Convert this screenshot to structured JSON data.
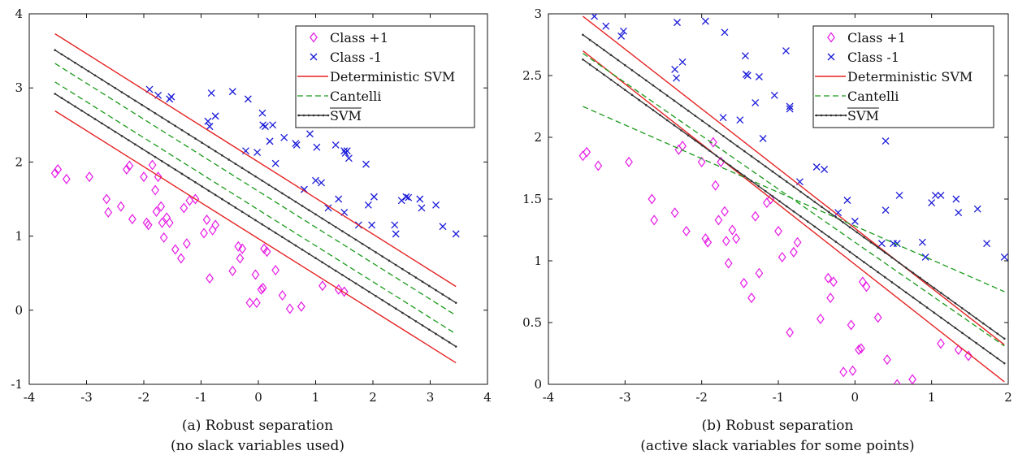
{
  "colors": {
    "class_pos": "#e619e6",
    "class_neg": "#1a1ad9",
    "det_svm": "#e52222",
    "cantelli": "#1a9a1a",
    "svm_bar": "#333333"
  },
  "legend": {
    "items": [
      {
        "label": "Class +1",
        "marker": "diamond",
        "color": "#e619e6"
      },
      {
        "label": "Class -1",
        "marker": "x",
        "color": "#1a1ad9"
      },
      {
        "label": "Deterministic SVM",
        "line": "solid",
        "color": "#e52222"
      },
      {
        "label": "Cantelli",
        "line": "dashed",
        "color": "#1a9a1a"
      },
      {
        "label": "SVM",
        "line": "solid-dot",
        "color": "#333333",
        "overline": true
      }
    ]
  },
  "chart_data": [
    {
      "type": "scatter",
      "caption_line1": "(a) Robust separation",
      "caption_line2": "(no slack variables used)",
      "xlim": [
        -4,
        4
      ],
      "ylim": [
        -1,
        4
      ],
      "xticks": [
        -4,
        -3,
        -2,
        -1,
        0,
        1,
        2,
        3,
        4
      ],
      "yticks": [
        -1,
        0,
        1,
        2,
        3,
        4
      ],
      "xtick_labels": [
        "-4",
        "-3",
        "-2",
        "-1",
        "0",
        "1",
        "2",
        "3",
        "4"
      ],
      "ytick_labels": [
        "-1",
        "0",
        "1",
        "2",
        "3",
        "4"
      ],
      "class_pos": [
        [
          -3.55,
          1.85
        ],
        [
          -3.5,
          1.9
        ],
        [
          -3.35,
          1.77
        ],
        [
          -2.95,
          1.8
        ],
        [
          -2.65,
          1.5
        ],
        [
          -2.62,
          1.32
        ],
        [
          -2.4,
          1.4
        ],
        [
          -2.3,
          1.9
        ],
        [
          -2.25,
          1.95
        ],
        [
          -2.2,
          1.23
        ],
        [
          -2.0,
          1.8
        ],
        [
          -1.95,
          1.18
        ],
        [
          -1.92,
          1.15
        ],
        [
          -1.85,
          1.96
        ],
        [
          -1.8,
          1.62
        ],
        [
          -1.78,
          1.33
        ],
        [
          -1.75,
          1.8
        ],
        [
          -1.7,
          1.4
        ],
        [
          -1.68,
          1.18
        ],
        [
          -1.65,
          0.98
        ],
        [
          -1.6,
          1.25
        ],
        [
          -1.55,
          1.18
        ],
        [
          -1.45,
          0.82
        ],
        [
          -1.35,
          0.7
        ],
        [
          -1.3,
          1.38
        ],
        [
          -1.25,
          0.9
        ],
        [
          -1.2,
          1.48
        ],
        [
          -1.1,
          1.5
        ],
        [
          -0.95,
          1.04
        ],
        [
          -0.9,
          1.22
        ],
        [
          -0.85,
          0.43
        ],
        [
          -0.8,
          1.08
        ],
        [
          -0.75,
          1.15
        ],
        [
          -0.45,
          0.53
        ],
        [
          -0.35,
          0.86
        ],
        [
          -0.32,
          0.7
        ],
        [
          -0.28,
          0.83
        ],
        [
          -0.15,
          0.1
        ],
        [
          -0.05,
          0.48
        ],
        [
          -0.03,
          0.1
        ],
        [
          0.05,
          0.28
        ],
        [
          0.08,
          0.3
        ],
        [
          0.1,
          0.83
        ],
        [
          0.15,
          0.79
        ],
        [
          0.3,
          0.54
        ],
        [
          0.42,
          0.2
        ],
        [
          0.55,
          0.02
        ],
        [
          0.75,
          0.05
        ],
        [
          1.12,
          0.33
        ],
        [
          1.4,
          0.28
        ],
        [
          1.5,
          0.25
        ]
      ],
      "class_neg": [
        [
          -1.9,
          2.98
        ],
        [
          -1.75,
          2.9
        ],
        [
          -1.55,
          2.85
        ],
        [
          -1.52,
          2.88
        ],
        [
          -0.88,
          2.55
        ],
        [
          -0.85,
          2.48
        ],
        [
          -0.82,
          2.93
        ],
        [
          -0.75,
          2.62
        ],
        [
          -0.45,
          2.95
        ],
        [
          -0.22,
          2.15
        ],
        [
          -0.18,
          2.85
        ],
        [
          -0.02,
          2.13
        ],
        [
          0.07,
          2.66
        ],
        [
          0.08,
          2.5
        ],
        [
          0.12,
          2.48
        ],
        [
          0.2,
          2.28
        ],
        [
          0.25,
          2.5
        ],
        [
          0.3,
          1.98
        ],
        [
          0.45,
          2.33
        ],
        [
          0.65,
          2.25
        ],
        [
          0.67,
          2.23
        ],
        [
          0.72,
          2.7
        ],
        [
          0.8,
          1.63
        ],
        [
          0.9,
          2.38
        ],
        [
          1.0,
          1.75
        ],
        [
          1.02,
          2.2
        ],
        [
          1.1,
          1.72
        ],
        [
          1.22,
          1.38
        ],
        [
          1.35,
          2.23
        ],
        [
          1.4,
          1.5
        ],
        [
          1.5,
          2.15
        ],
        [
          1.5,
          1.32
        ],
        [
          1.52,
          2.12
        ],
        [
          1.55,
          2.15
        ],
        [
          1.58,
          2.05
        ],
        [
          1.75,
          1.15
        ],
        [
          1.88,
          1.97
        ],
        [
          1.92,
          1.42
        ],
        [
          1.98,
          1.15
        ],
        [
          2.02,
          1.53
        ],
        [
          2.38,
          1.15
        ],
        [
          2.4,
          1.03
        ],
        [
          2.5,
          1.48
        ],
        [
          2.58,
          1.53
        ],
        [
          2.62,
          1.52
        ],
        [
          2.82,
          1.5
        ],
        [
          2.85,
          1.38
        ],
        [
          3.1,
          1.42
        ],
        [
          3.22,
          1.13
        ],
        [
          3.45,
          1.03
        ]
      ],
      "lines": [
        {
          "kind": "det",
          "x": [
            -3.55,
            3.45
          ],
          "y": [
            3.73,
            0.32
          ]
        },
        {
          "kind": "det",
          "x": [
            -3.55,
            3.45
          ],
          "y": [
            2.69,
            -0.71
          ]
        },
        {
          "kind": "cantelli",
          "x": [
            -3.55,
            3.45
          ],
          "y": [
            3.33,
            -0.07
          ]
        },
        {
          "kind": "cantelli",
          "x": [
            -3.55,
            3.45
          ],
          "y": [
            3.08,
            -0.32
          ]
        },
        {
          "kind": "svmbar",
          "x": [
            -3.55,
            3.45
          ],
          "y": [
            3.51,
            0.1
          ]
        },
        {
          "kind": "svmbar",
          "x": [
            -3.55,
            3.45
          ],
          "y": [
            2.92,
            -0.49
          ]
        }
      ]
    },
    {
      "type": "scatter",
      "caption_line1": "(b) Robust separation",
      "caption_line2": "(active slack variables for some points)",
      "xlim": [
        -4,
        2
      ],
      "ylim": [
        0,
        3
      ],
      "xticks": [
        -4,
        -3,
        -2,
        -1,
        0,
        1,
        2
      ],
      "yticks": [
        0,
        0.5,
        1,
        1.5,
        2,
        2.5,
        3
      ],
      "xtick_labels": [
        "-4",
        "-3",
        "-2",
        "-1",
        "0",
        "1",
        "2"
      ],
      "ytick_labels": [
        "0",
        "0.5",
        "1",
        "1.5",
        "2",
        "2.5",
        "3"
      ],
      "class_pos": [
        [
          -3.55,
          1.85
        ],
        [
          -3.5,
          1.88
        ],
        [
          -3.35,
          1.77
        ],
        [
          -2.95,
          1.8
        ],
        [
          -2.65,
          1.5
        ],
        [
          -2.62,
          1.33
        ],
        [
          -2.35,
          1.39
        ],
        [
          -2.3,
          1.9
        ],
        [
          -2.25,
          1.93
        ],
        [
          -2.2,
          1.24
        ],
        [
          -2.0,
          1.8
        ],
        [
          -1.95,
          1.18
        ],
        [
          -1.92,
          1.15
        ],
        [
          -1.85,
          1.96
        ],
        [
          -1.82,
          1.61
        ],
        [
          -1.78,
          1.33
        ],
        [
          -1.75,
          1.8
        ],
        [
          -1.7,
          1.4
        ],
        [
          -1.68,
          1.16
        ],
        [
          -1.65,
          0.98
        ],
        [
          -1.6,
          1.25
        ],
        [
          -1.55,
          1.18
        ],
        [
          -1.45,
          0.82
        ],
        [
          -1.35,
          0.7
        ],
        [
          -1.3,
          1.36
        ],
        [
          -1.25,
          0.9
        ],
        [
          -1.15,
          1.47
        ],
        [
          -1.1,
          1.5
        ],
        [
          -1.0,
          1.24
        ],
        [
          -0.95,
          1.03
        ],
        [
          -0.85,
          0.42
        ],
        [
          -0.8,
          1.07
        ],
        [
          -0.75,
          1.15
        ],
        [
          -0.45,
          0.53
        ],
        [
          -0.35,
          0.86
        ],
        [
          -0.32,
          0.7
        ],
        [
          -0.28,
          0.83
        ],
        [
          -0.15,
          0.1
        ],
        [
          -0.05,
          0.48
        ],
        [
          -0.03,
          0.11
        ],
        [
          0.05,
          0.28
        ],
        [
          0.08,
          0.29
        ],
        [
          0.1,
          0.83
        ],
        [
          0.15,
          0.79
        ],
        [
          0.3,
          0.54
        ],
        [
          0.42,
          0.2
        ],
        [
          0.55,
          0.0
        ],
        [
          0.75,
          0.04
        ],
        [
          1.12,
          0.33
        ],
        [
          1.35,
          0.28
        ],
        [
          1.48,
          0.23
        ]
      ],
      "class_neg": [
        [
          -3.4,
          2.98
        ],
        [
          -3.25,
          2.9
        ],
        [
          -3.05,
          2.82
        ],
        [
          -3.02,
          2.86
        ],
        [
          -2.35,
          2.55
        ],
        [
          -2.33,
          2.48
        ],
        [
          -2.32,
          2.93
        ],
        [
          -2.25,
          2.61
        ],
        [
          -1.95,
          2.94
        ],
        [
          -1.72,
          2.16
        ],
        [
          -1.7,
          2.85
        ],
        [
          -1.5,
          2.14
        ],
        [
          -1.43,
          2.66
        ],
        [
          -1.42,
          2.51
        ],
        [
          -1.4,
          2.5
        ],
        [
          -1.3,
          2.28
        ],
        [
          -1.25,
          2.49
        ],
        [
          -1.2,
          1.99
        ],
        [
          -1.05,
          2.34
        ],
        [
          -0.9,
          2.7
        ],
        [
          -0.85,
          2.25
        ],
        [
          -0.85,
          2.23
        ],
        [
          -0.72,
          1.64
        ],
        [
          -0.5,
          1.76
        ],
        [
          -0.4,
          1.74
        ],
        [
          -0.22,
          1.39
        ],
        [
          -0.1,
          1.49
        ],
        [
          0.0,
          1.32
        ],
        [
          0.35,
          1.14
        ],
        [
          0.4,
          1.41
        ],
        [
          0.4,
          1.97
        ],
        [
          0.5,
          1.14
        ],
        [
          0.55,
          1.14
        ],
        [
          0.58,
          1.53
        ],
        [
          0.88,
          1.15
        ],
        [
          0.92,
          1.03
        ],
        [
          1.0,
          1.47
        ],
        [
          1.05,
          1.53
        ],
        [
          1.12,
          1.53
        ],
        [
          1.32,
          1.5
        ],
        [
          1.35,
          1.39
        ],
        [
          1.6,
          1.42
        ],
        [
          1.72,
          1.14
        ],
        [
          1.95,
          1.03
        ]
      ],
      "lines": [
        {
          "kind": "det",
          "x": [
            -3.55,
            1.95
          ],
          "y": [
            2.98,
            0.32
          ]
        },
        {
          "kind": "det",
          "x": [
            -3.55,
            1.95
          ],
          "y": [
            2.7,
            0.02
          ]
        },
        {
          "kind": "cantelli",
          "x": [
            -3.55,
            1.95
          ],
          "y": [
            2.68,
            0.31
          ]
        },
        {
          "kind": "cantelli",
          "x": [
            -3.55,
            1.95
          ],
          "y": [
            2.25,
            0.75
          ]
        },
        {
          "kind": "svmbar",
          "x": [
            -3.55,
            1.95
          ],
          "y": [
            2.83,
            0.37
          ]
        },
        {
          "kind": "svmbar",
          "x": [
            -3.55,
            1.95
          ],
          "y": [
            2.63,
            0.17
          ]
        }
      ]
    }
  ]
}
